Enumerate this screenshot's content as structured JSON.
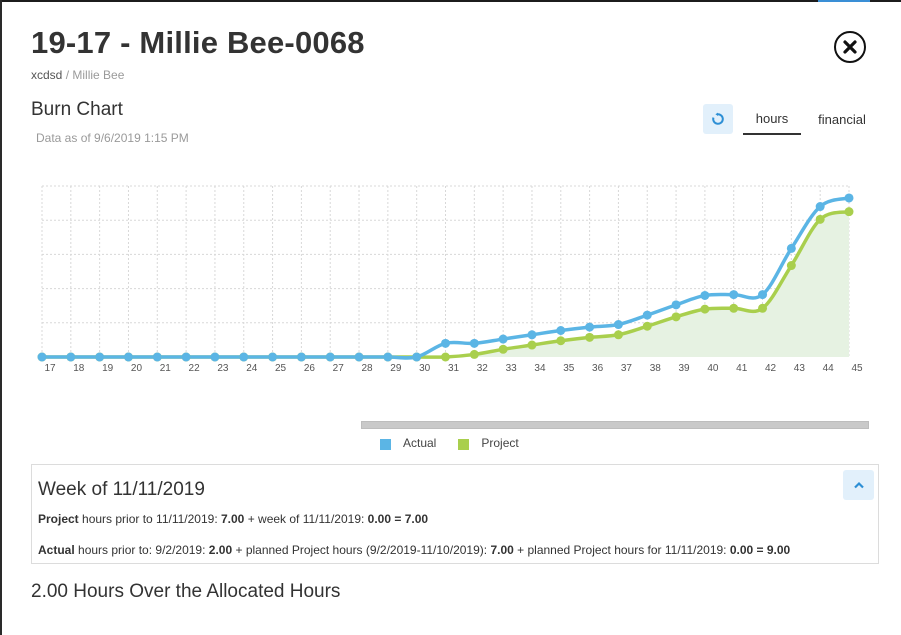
{
  "header": {
    "title": "19-17 - Millie Bee-0068",
    "breadcrumb_root": "xcdsd",
    "breadcrumb_sep": " / ",
    "breadcrumb_current": "Millie Bee"
  },
  "chart_section": {
    "title": "Burn Chart",
    "data_as_of": "Data as of 9/6/2019 1:15 PM",
    "tabs": [
      {
        "label": "hours",
        "active": true
      },
      {
        "label": "financial",
        "active": false
      }
    ]
  },
  "colors": {
    "actual": "#5bb5e5",
    "project": "#a9cf4d",
    "project_fill": "#e6f2e2",
    "grid": "#d8d8d8",
    "axis_text": "#555555"
  },
  "chart_data": {
    "type": "line",
    "x": [
      17,
      18,
      19,
      20,
      21,
      22,
      23,
      24,
      25,
      26,
      27,
      28,
      29,
      30,
      31,
      32,
      33,
      34,
      35,
      36,
      37,
      38,
      39,
      40,
      41,
      42,
      43,
      44,
      45
    ],
    "ylim": [
      0,
      10
    ],
    "grid": true,
    "legend_position": "bottom",
    "series": [
      {
        "name": "Actual",
        "values": [
          0,
          0,
          0,
          0,
          0,
          0,
          0,
          0,
          0,
          0,
          0,
          0,
          0,
          0,
          0.8,
          0.8,
          1.05,
          1.3,
          1.55,
          1.75,
          1.9,
          2.45,
          3.05,
          3.6,
          3.65,
          3.65,
          6.35,
          8.8,
          9.3
        ]
      },
      {
        "name": "Project",
        "values": [
          0,
          0,
          0,
          0,
          0,
          0,
          0,
          0,
          0,
          0,
          0,
          0,
          0,
          0,
          0,
          0.15,
          0.45,
          0.7,
          0.95,
          1.15,
          1.3,
          1.8,
          2.35,
          2.8,
          2.85,
          2.85,
          5.35,
          8.05,
          8.5
        ]
      }
    ]
  },
  "week_panel": {
    "title": "Week of 11/11/2019",
    "line1": {
      "label": "Project",
      "t1": " hours prior to 11/11/2019: ",
      "v1": "7.00",
      "t2": " + week of 11/11/2019: ",
      "v2": "0.00 = 7.00"
    },
    "line2": {
      "label": "Actual",
      "t1": " hours prior to: 9/2/2019: ",
      "v1": "2.00",
      "t2": " + planned Project hours (9/2/2019-11/10/2019): ",
      "v2": "7.00",
      "t3": " + planned Project hours for 11/11/2019: ",
      "v3": "0.00 = 9.00"
    }
  },
  "summary": "2.00 Hours Over the Allocated Hours",
  "icons": {
    "close": "close-circle-icon",
    "refresh": "refresh-icon",
    "collapse": "chevron-up-icon"
  }
}
